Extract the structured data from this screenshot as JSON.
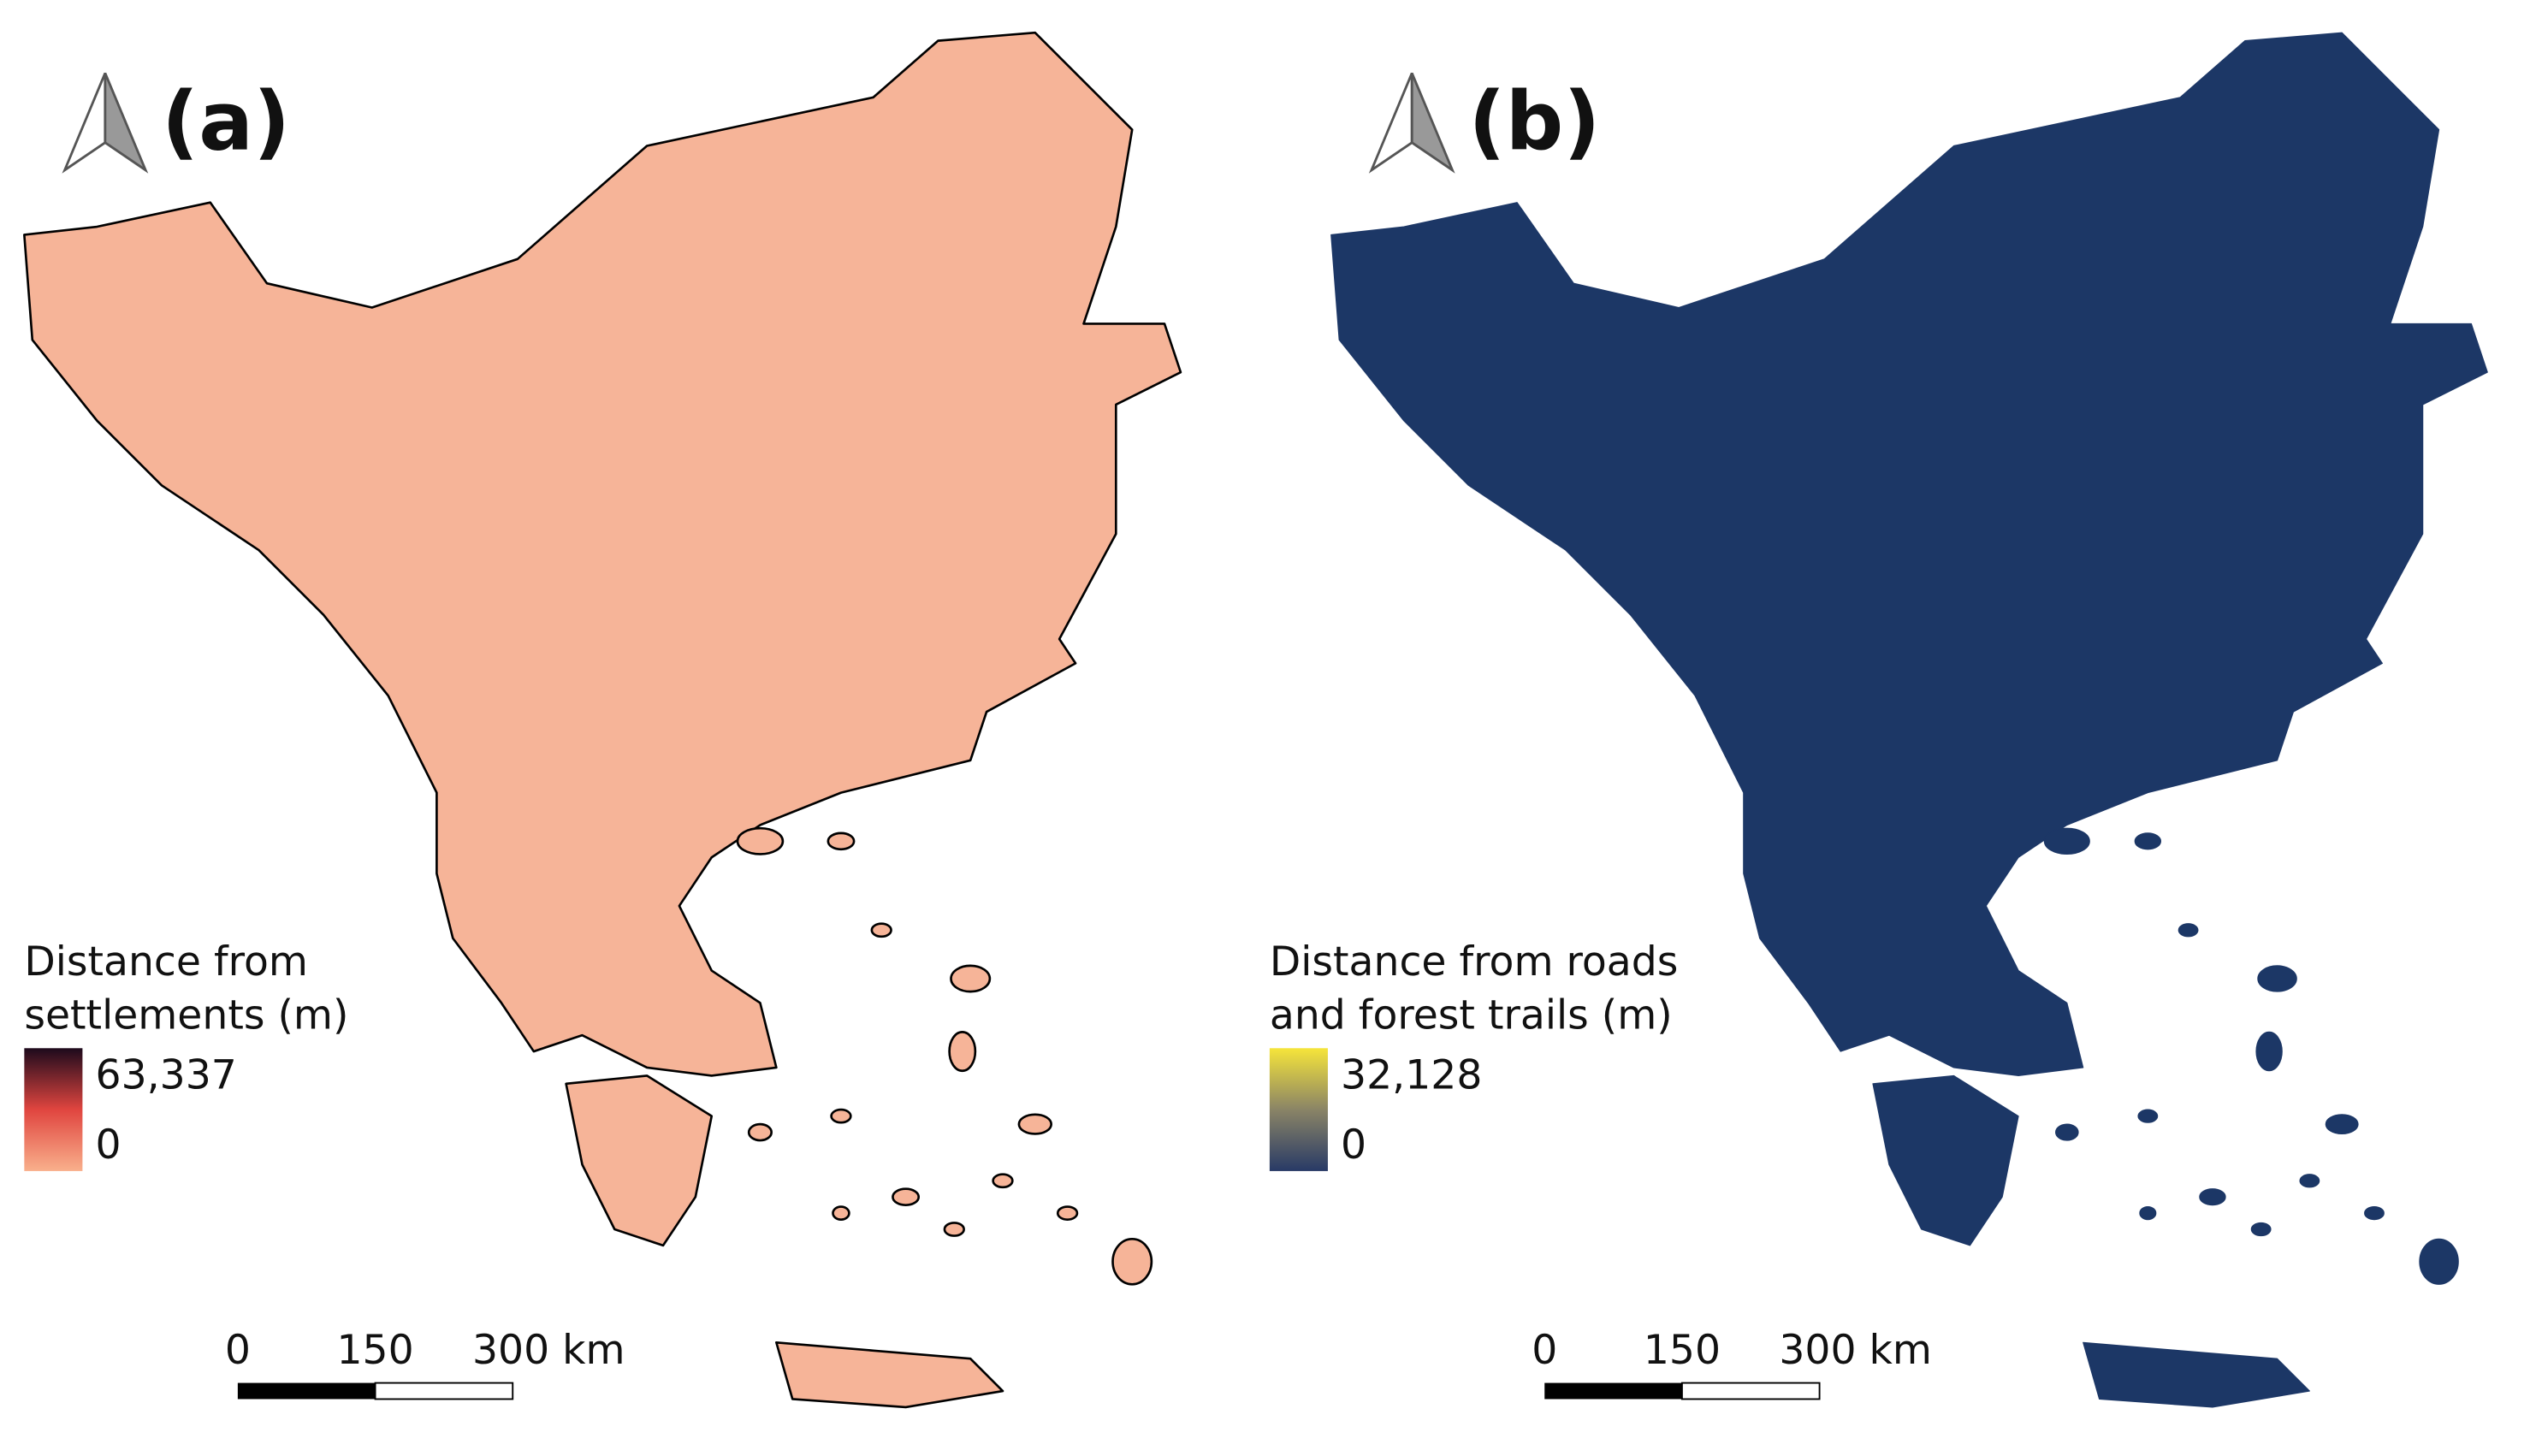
{
  "panels": [
    {
      "label": "(a)",
      "legend": {
        "title": [
          "Distance from",
          "settlements (m)"
        ],
        "max": "63,337",
        "min": "0"
      },
      "scale_bar": [
        "0",
        "150",
        "300 km"
      ]
    },
    {
      "label": "(b)",
      "legend": {
        "title": [
          "Distance from roads",
          "and forest trails (m)"
        ],
        "max": "32,128",
        "min": "0"
      },
      "scale_bar": [
        "0",
        "150",
        "300 km"
      ]
    }
  ]
}
